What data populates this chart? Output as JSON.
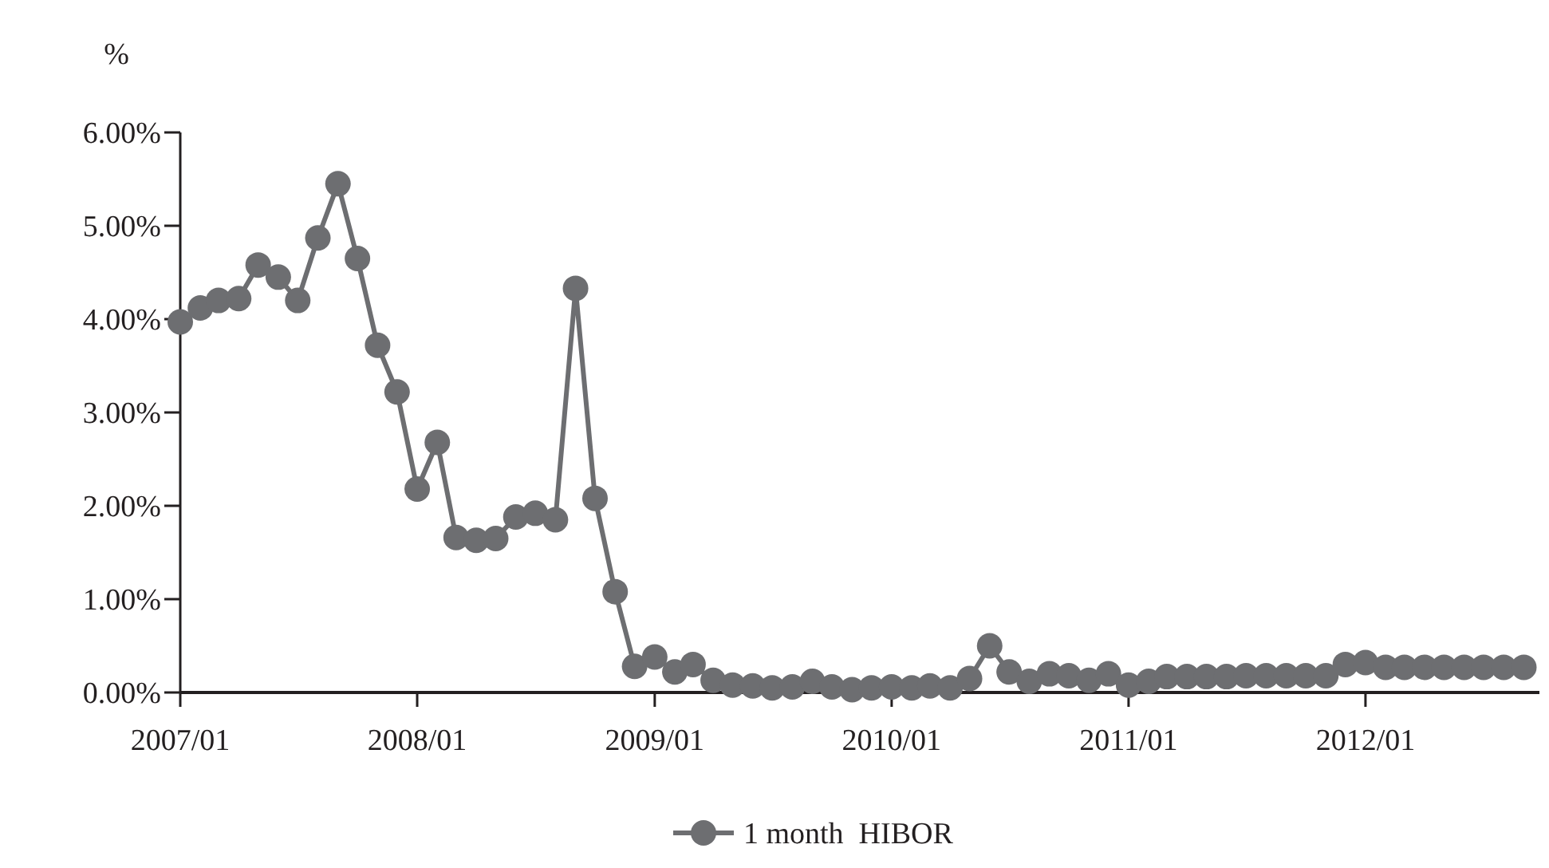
{
  "chart_data": {
    "type": "line",
    "ylabel": "%",
    "xlim": [
      "2007-01",
      "2012-09-25"
    ],
    "ylim": [
      0,
      6
    ],
    "yticks": [
      {
        "value": 0,
        "label": "0.00%"
      },
      {
        "value": 1,
        "label": "1.00%"
      },
      {
        "value": 2,
        "label": "2.00%"
      },
      {
        "value": 3,
        "label": "3.00%"
      },
      {
        "value": 4,
        "label": "4.00%"
      },
      {
        "value": 5,
        "label": "5.00%"
      },
      {
        "value": 6,
        "label": "6.00%"
      }
    ],
    "xticks": [
      {
        "value": "2007-01",
        "label": "2007/01"
      },
      {
        "value": "2008-01",
        "label": "2008/01"
      },
      {
        "value": "2009-01",
        "label": "2009/01"
      },
      {
        "value": "2010-01",
        "label": "2010/01"
      },
      {
        "value": "2011-01",
        "label": "2011/01"
      },
      {
        "value": "2012-01",
        "label": "2012/01"
      }
    ],
    "x": [
      "2007-01",
      "2007-02",
      "2007-03",
      "2007-04",
      "2007-05",
      "2007-06",
      "2007-07",
      "2007-08",
      "2007-09",
      "2007-10",
      "2007-11",
      "2007-12",
      "2008-01",
      "2008-02",
      "2008-03",
      "2008-04",
      "2008-05",
      "2008-06",
      "2008-07",
      "2008-08",
      "2008-09",
      "2008-10",
      "2008-11",
      "2008-12",
      "2009-01",
      "2009-02",
      "2009-03",
      "2009-04",
      "2009-05",
      "2009-06",
      "2009-07",
      "2009-08",
      "2009-09",
      "2009-10",
      "2009-11",
      "2009-12",
      "2010-01",
      "2010-02",
      "2010-03",
      "2010-04",
      "2010-05",
      "2010-06",
      "2010-07",
      "2010-08",
      "2010-09",
      "2010-10",
      "2010-11",
      "2010-12",
      "2011-01",
      "2011-02",
      "2011-03",
      "2011-04",
      "2011-05",
      "2011-06",
      "2011-07",
      "2011-08",
      "2011-09",
      "2011-10",
      "2011-11",
      "2011-12",
      "2012-01",
      "2012-02",
      "2012-03",
      "2012-04",
      "2012-05",
      "2012-06",
      "2012-07",
      "2012-08",
      "2012-09"
    ],
    "series": [
      {
        "name": "1 month  HIBOR",
        "color": "#6d6e71",
        "values": [
          3.97,
          4.12,
          4.2,
          4.22,
          4.58,
          4.45,
          4.2,
          4.87,
          5.45,
          4.65,
          3.72,
          3.22,
          2.18,
          2.68,
          1.66,
          1.63,
          1.65,
          1.88,
          1.92,
          1.85,
          4.33,
          2.08,
          1.08,
          0.28,
          0.38,
          0.22,
          0.3,
          0.13,
          0.08,
          0.07,
          0.05,
          0.06,
          0.12,
          0.06,
          0.03,
          0.05,
          0.06,
          0.05,
          0.07,
          0.05,
          0.15,
          0.5,
          0.22,
          0.12,
          0.2,
          0.18,
          0.13,
          0.2,
          0.08,
          0.12,
          0.17,
          0.17,
          0.17,
          0.17,
          0.18,
          0.18,
          0.18,
          0.18,
          0.18,
          0.3,
          0.32,
          0.27,
          0.27,
          0.27,
          0.27,
          0.27,
          0.27,
          0.27,
          0.27
        ]
      }
    ],
    "marker": "circle",
    "line_style": "solid",
    "legend": "bottom",
    "grid": false
  }
}
